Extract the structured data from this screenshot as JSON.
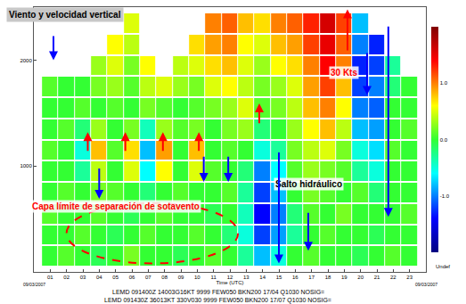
{
  "chart_data": {
    "type": "heatmap",
    "title": "Viento y velocidad vertical",
    "x_label": "Time (UTC)",
    "x": [
      1,
      2,
      3,
      4,
      5,
      6,
      7,
      8,
      9,
      10,
      11,
      12,
      13,
      14,
      15,
      16,
      17,
      18,
      19,
      20,
      21,
      22,
      23
    ],
    "y": [
      150,
      350,
      550,
      750,
      950,
      1150,
      1350,
      1550,
      1750,
      1950,
      2150,
      2350
    ],
    "z": [
      [
        0,
        0.1,
        0,
        -0.1,
        0,
        0.2,
        0,
        0,
        -0.1,
        0,
        0.1,
        0,
        -0.3,
        -0.8,
        -0.5,
        0,
        0.1,
        0,
        0,
        -0.1,
        0,
        0.1,
        0
      ],
      [
        0,
        0,
        0.1,
        0,
        -0.1,
        0,
        0.1,
        0,
        0,
        0.1,
        0,
        -0.2,
        -0.5,
        -1.2,
        -0.9,
        -0.3,
        0,
        0.1,
        0,
        0,
        -0.1,
        0,
        0
      ],
      [
        0.1,
        0,
        0,
        0.1,
        0,
        -0.1,
        0,
        0.1,
        0,
        0,
        -0.1,
        0,
        -0.4,
        -1.4,
        -1.0,
        -0.2,
        0.1,
        0,
        0.2,
        0,
        0,
        0,
        0.1
      ],
      [
        0,
        0.1,
        0,
        0.2,
        0.1,
        0,
        -0.2,
        0,
        0.1,
        0,
        0,
        0.1,
        -0.3,
        -1.2,
        -0.8,
        0,
        0.2,
        0.1,
        0,
        0.1,
        -0.2,
        0,
        0
      ],
      [
        0,
        0,
        -0.3,
        0.4,
        0,
        0.5,
        -0.6,
        0.6,
        0,
        0.5,
        0.1,
        0,
        -0.2,
        -1.0,
        -0.6,
        0.1,
        0.3,
        0.2,
        0.1,
        -0.3,
        -0.5,
        0,
        0
      ],
      [
        0.1,
        0,
        -0.5,
        0.8,
        0.1,
        0.7,
        -0.8,
        0.9,
        0,
        0.8,
        0,
        0.1,
        0,
        -0.5,
        -0.3,
        0.2,
        0.4,
        0.5,
        0.2,
        -0.5,
        -0.7,
        0.1,
        0
      ],
      [
        0,
        0.1,
        -0.2,
        0.3,
        0,
        0.2,
        -0.4,
        0.3,
        0.1,
        0.2,
        0,
        0.2,
        0.3,
        -0.2,
        0,
        0.3,
        0.6,
        0.8,
        0.4,
        -0.8,
        -0.9,
        0,
        0.1
      ],
      [
        0,
        0,
        0.1,
        0,
        0.1,
        0,
        0.2,
        0.1,
        0,
        0.1,
        0.2,
        0.3,
        0.5,
        0.1,
        0.2,
        0.4,
        0.8,
        1.0,
        0.6,
        -1.0,
        -1.1,
        0,
        0
      ],
      [
        0.1,
        0,
        0,
        0.2,
        0.3,
        0.1,
        0.4,
        0.5,
        0.3,
        0.2,
        0.5,
        0.6,
        0.4,
        0.2,
        0.3,
        0.5,
        0.9,
        1.2,
        0.8,
        -1.2,
        -1.0,
        -0.2,
        0
      ],
      [
        null,
        null,
        null,
        0.3,
        0.5,
        0.2,
        0.6,
        null,
        0.4,
        0.5,
        0.7,
        0.8,
        0.5,
        0.3,
        0.6,
        0.7,
        1.0,
        1.4,
        1.0,
        -1.3,
        -1.2,
        -0.3,
        null
      ],
      [
        null,
        null,
        null,
        null,
        0.6,
        0.4,
        null,
        null,
        null,
        0.7,
        0.9,
        1.0,
        0.6,
        0.5,
        0.8,
        0.9,
        1.2,
        1.5,
        1.1,
        -1.0,
        -1.3,
        null,
        null
      ],
      [
        null,
        null,
        null,
        null,
        null,
        0.5,
        null,
        null,
        null,
        null,
        1.0,
        1.1,
        0.8,
        0.7,
        1.0,
        1.1,
        1.3,
        1.6,
        1.2,
        -0.8,
        null,
        null,
        null
      ]
    ],
    "xlim": [
      0,
      24
    ],
    "ylim": [
      0,
      2500
    ],
    "xticks": [
      {
        "value": 1,
        "label": "01"
      },
      {
        "value": 2,
        "label": "02"
      },
      {
        "value": 3,
        "label": "03"
      },
      {
        "value": 4,
        "label": "04"
      },
      {
        "value": 5,
        "label": "05"
      },
      {
        "value": 6,
        "label": "06"
      },
      {
        "value": 7,
        "label": "07"
      },
      {
        "value": 8,
        "label": "08"
      },
      {
        "value": 9,
        "label": "09"
      },
      {
        "value": 10,
        "label": "10"
      },
      {
        "value": 11,
        "label": "11"
      },
      {
        "value": 12,
        "label": "12"
      },
      {
        "value": 13,
        "label": "13"
      },
      {
        "value": 14,
        "label": "14"
      },
      {
        "value": 15,
        "label": "15"
      },
      {
        "value": 16,
        "label": "16"
      },
      {
        "value": 17,
        "label": "17"
      },
      {
        "value": 18,
        "label": "18"
      },
      {
        "value": 19,
        "label": "19"
      },
      {
        "value": 20,
        "label": "20"
      },
      {
        "value": 21,
        "label": "21"
      },
      {
        "value": 22,
        "label": "22"
      },
      {
        "value": 23,
        "label": "23"
      }
    ],
    "yticks": [
      1000,
      2000
    ],
    "zlim": [
      -2,
      2
    ],
    "zticks": [
      {
        "value": 1,
        "label": "1.0"
      },
      {
        "value": 0,
        "label": "0.0"
      },
      {
        "value": -1,
        "label": "-1.0"
      }
    ],
    "colorbar_extra_label": "Undef",
    "date_labels": [
      "09/03/2007",
      "09/03/2007"
    ],
    "annotations": [
      {
        "text": "30 Kts",
        "x": 19,
        "y": 1880,
        "color": "#ff0000"
      },
      {
        "text": "Salto hidráulico",
        "x": 16.8,
        "y": 830,
        "color": "#000000"
      },
      {
        "text": "Capa límite de separación de sotavento",
        "x": 5,
        "y": 620,
        "color": "#ff0000"
      }
    ],
    "arrows": [
      {
        "x": 3.3,
        "y0": 1130,
        "y1": 1320,
        "color": "#ff0000"
      },
      {
        "x": 5.6,
        "y0": 1130,
        "y1": 1320,
        "color": "#ff0000"
      },
      {
        "x": 7.9,
        "y0": 1130,
        "y1": 1320,
        "color": "#ff0000"
      },
      {
        "x": 10.1,
        "y0": 1130,
        "y1": 1320,
        "color": "#ff0000"
      },
      {
        "x": 13.8,
        "y0": 1390,
        "y1": 1590,
        "color": "#ff0000"
      },
      {
        "x": 19.2,
        "y0": 2080,
        "y1": 2480,
        "color": "#ff0000"
      },
      {
        "x": 1.2,
        "y0": 2240,
        "y1": 2000,
        "color": "#0000ff"
      },
      {
        "x": 4.0,
        "y0": 990,
        "y1": 690,
        "color": "#0000ff"
      },
      {
        "x": 10.4,
        "y0": 1100,
        "y1": 850,
        "color": "#0000ff"
      },
      {
        "x": 11.9,
        "y0": 1100,
        "y1": 850,
        "color": "#0000ff"
      },
      {
        "x": 15.0,
        "y0": 1140,
        "y1": 80,
        "color": "#0000ff"
      },
      {
        "x": 16.8,
        "y0": 570,
        "y1": 200,
        "color": "#0000ff"
      },
      {
        "x": 20.4,
        "y0": 2080,
        "y1": 1670,
        "color": "#0000ff"
      },
      {
        "x": 21.7,
        "y0": 2330,
        "y1": 520,
        "color": "#0000ff"
      }
    ],
    "region": {
      "x0": 2,
      "x1": 12.5,
      "y0": 80,
      "y1": 650,
      "color": "#ff0000"
    },
    "footer": [
      "LEMD 091400Z 14003G16KT 9999 FEW050 BKN200 17/04 Q1030 NOSIG=",
      "LEMD 091430Z 36013KT 330V030 9999 FEW050 BKN200 17/07 Q1030 NOSIG="
    ]
  }
}
